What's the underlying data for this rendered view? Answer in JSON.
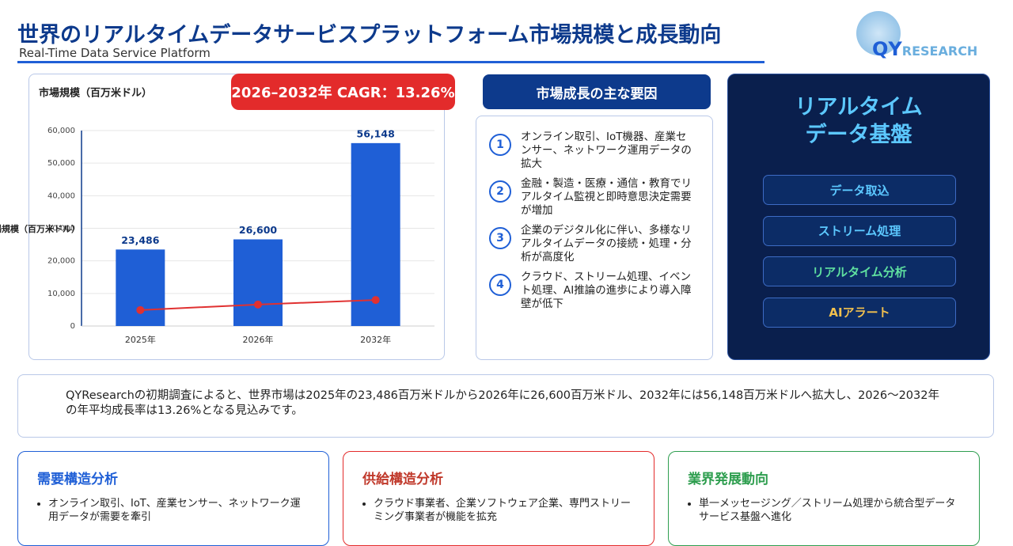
{
  "header": {
    "title": "世界のリアルタイムデータサービスプラットフォーム市場規模と成長動向",
    "subtitle": "Real-Time Data Service Platform",
    "logo_a": "QY",
    "logo_b": "RESEARCH"
  },
  "chart_data": {
    "type": "bar",
    "title": "市場規模（百万米ドル）",
    "ylabel": "市場規模（百万米ドル）",
    "badge": "2026–2032年 CAGR：13.26%",
    "categories": [
      "2025年",
      "2026年",
      "2032年"
    ],
    "series": [
      {
        "type": "bar",
        "color": "#1f5fd6",
        "values": [
          23486,
          26600,
          56148
        ],
        "value_labels": [
          "23,486",
          "26,600",
          "56,148"
        ]
      },
      {
        "type": "line",
        "color": "#e03131",
        "values": [
          4900,
          6600,
          8000
        ]
      }
    ],
    "ylim": [
      0,
      60000
    ],
    "yticks": [
      0,
      {
        "value": 10000,
        "label": "10,000"
      },
      {
        "value": 20000,
        "label": "20,000"
      },
      {
        "value": 30000,
        "label": "30,000"
      },
      {
        "value": 40000,
        "label": "40,000"
      },
      {
        "value": 50000,
        "label": "50,000"
      },
      {
        "value": 60000,
        "label": "60,000"
      }
    ],
    "grid": true
  },
  "drivers": {
    "title": "市場成長の主な要因",
    "items": [
      {
        "number": 1,
        "text": "オンライン取引、IoT機器、産業センサー、ネットワーク運用データの拡大"
      },
      {
        "number": 2,
        "text": "金融・製造・医療・通信・教育でリアルタイム監視と即時意思決定需要が増加"
      },
      {
        "number": 3,
        "text": "企業のデジタル化に伴い、多様なリアルタイムデータの接続・処理・分析が高度化"
      },
      {
        "number": 4,
        "text": "クラウド、ストリーム処理、イベント処理、AI推論の進歩により導入障壁が低下"
      }
    ]
  },
  "platform": {
    "title": [
      "リアルタイム",
      "データ基盤"
    ],
    "steps": [
      "データ取込",
      "ストリーム処理",
      "リアルタイム分析",
      "AIアラート"
    ]
  },
  "summary": "QYResearchの初期調査によると、世界市場は2025年の23,486百万米ドルから2026年に26,600百万米ドル、2032年には56,148百万米ドルへ拡大し、2026～2032年の年平均成長率は13.26%となる見込みです。",
  "cards": [
    {
      "title": "需要構造分析",
      "bullets": [
        "オンライン取引、IoT、産業センサー、ネットワーク運用データが需要を牽引"
      ]
    },
    {
      "title": "供給構造分析",
      "bullets": [
        "クラウド事業者、企業ソフトウェア企業、専門ストリーミング事業者が機能を拡充"
      ]
    },
    {
      "title": "業界発展動向",
      "bullets": [
        "単一メッセージング／ストリーム処理から統合型データサービス基盤へ進化"
      ]
    }
  ]
}
